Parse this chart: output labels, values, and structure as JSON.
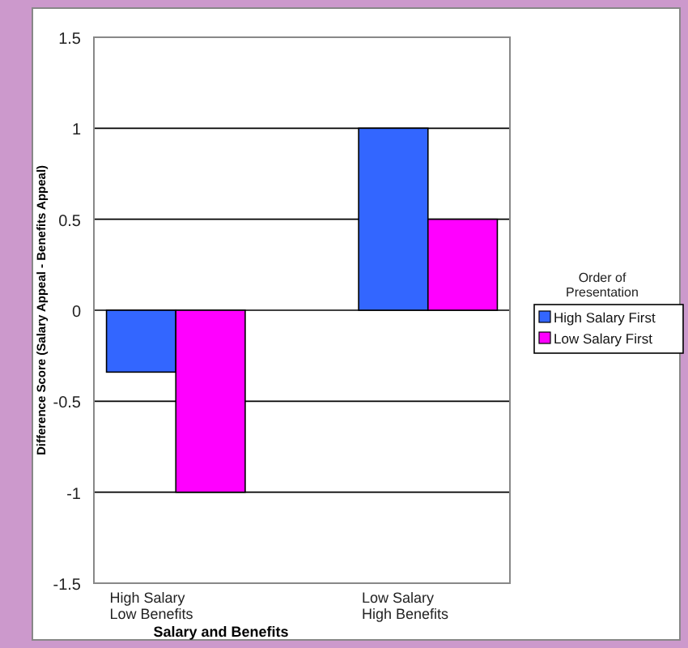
{
  "chart_data": {
    "type": "bar",
    "xlabel": "Salary and Benefits",
    "ylabel": "Difference Score (Salary Appeal - Benefits Appeal)",
    "legend_title": "Order of Presentation",
    "categories": [
      "High Salary\nLow Benefits",
      "Low Salary\nHigh Benefits"
    ],
    "series": [
      {
        "name": "High Salary First",
        "color": "#3366ff",
        "values": [
          -0.34,
          1
        ]
      },
      {
        "name": "Low Salary First",
        "color": "#ff00ff",
        "values": [
          -1,
          0.5
        ]
      }
    ],
    "ylim": [
      -1.5,
      1.5
    ],
    "yticks": [
      1.5,
      1,
      0.5,
      0,
      -0.5,
      -1,
      -1.5
    ],
    "grid": "y",
    "legend": "right"
  }
}
